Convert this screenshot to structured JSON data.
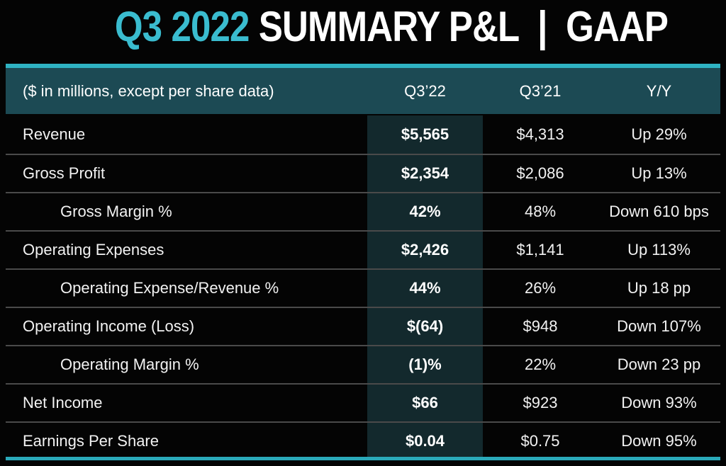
{
  "title": {
    "quarter": "Q3 2022",
    "rest": " SUMMARY P&L  |  GAAP"
  },
  "colors": {
    "background": "#040404",
    "title_accent": "#3abccf",
    "accent_line": "#2fb3c3",
    "header_bg": "#1c4a54",
    "highlight_col_bg": "#13292d",
    "row_separator": "#4a4a4a",
    "bottom_line": "#2aa9b9",
    "text": "#f2f2f2"
  },
  "table": {
    "header": {
      "note": "($ in millions, except per share data)",
      "col_q322": "Q3’22",
      "col_q321": "Q3’21",
      "col_yy": "Y/Y"
    },
    "rows": [
      {
        "label": "Revenue",
        "indent": false,
        "q322": "$5,565",
        "q321": "$4,313",
        "yy": "Up 29%"
      },
      {
        "label": "Gross Profit",
        "indent": false,
        "q322": "$2,354",
        "q321": "$2,086",
        "yy": "Up 13%"
      },
      {
        "label": "Gross Margin %",
        "indent": true,
        "q322": "42%",
        "q321": "48%",
        "yy": "Down 610 bps"
      },
      {
        "label": "Operating Expenses",
        "indent": false,
        "q322": "$2,426",
        "q321": "$1,141",
        "yy": "Up 113%"
      },
      {
        "label": "Operating Expense/Revenue %",
        "indent": true,
        "q322": "44%",
        "q321": "26%",
        "yy": "Up 18 pp"
      },
      {
        "label": "Operating Income (Loss)",
        "indent": false,
        "q322": "$(64)",
        "q321": "$948",
        "yy": "Down 107%"
      },
      {
        "label": "Operating Margin %",
        "indent": true,
        "q322": "(1)%",
        "q321": "22%",
        "yy": "Down 23 pp"
      },
      {
        "label": "Net Income",
        "indent": false,
        "q322": "$66",
        "q321": "$923",
        "yy": "Down 93%"
      },
      {
        "label": "Earnings Per Share",
        "indent": false,
        "q322": "$0.04",
        "q321": "$0.75",
        "yy": "Down 95%"
      }
    ]
  },
  "chart_data": {
    "type": "table",
    "title": "Q3 2022 SUMMARY P&L | GAAP",
    "columns": [
      "($ in millions, except per share data)",
      "Q3’22",
      "Q3’21",
      "Y/Y"
    ],
    "rows": [
      [
        "Revenue",
        "$5,565",
        "$4,313",
        "Up 29%"
      ],
      [
        "Gross Profit",
        "$2,354",
        "$2,086",
        "Up 13%"
      ],
      [
        "Gross Margin %",
        "42%",
        "48%",
        "Down 610 bps"
      ],
      [
        "Operating Expenses",
        "$2,426",
        "$1,141",
        "Up 113%"
      ],
      [
        "Operating Expense/Revenue %",
        "44%",
        "26%",
        "Up 18 pp"
      ],
      [
        "Operating Income (Loss)",
        "$(64)",
        "$948",
        "Down 107%"
      ],
      [
        "Operating Margin %",
        "(1)%",
        "22%",
        "Down 23 pp"
      ],
      [
        "Net Income",
        "$66",
        "$923",
        "Down 93%"
      ],
      [
        "Earnings Per Share",
        "$0.04",
        "$0.75",
        "Down 95%"
      ]
    ],
    "highlighted_column": "Q3’22",
    "values_numeric": {
      "q322": [
        5565,
        2354,
        0.42,
        2426,
        0.44,
        -64,
        -0.01,
        66,
        0.04
      ],
      "q321": [
        4313,
        2086,
        0.48,
        1141,
        0.26,
        948,
        0.22,
        923,
        0.75
      ]
    }
  }
}
